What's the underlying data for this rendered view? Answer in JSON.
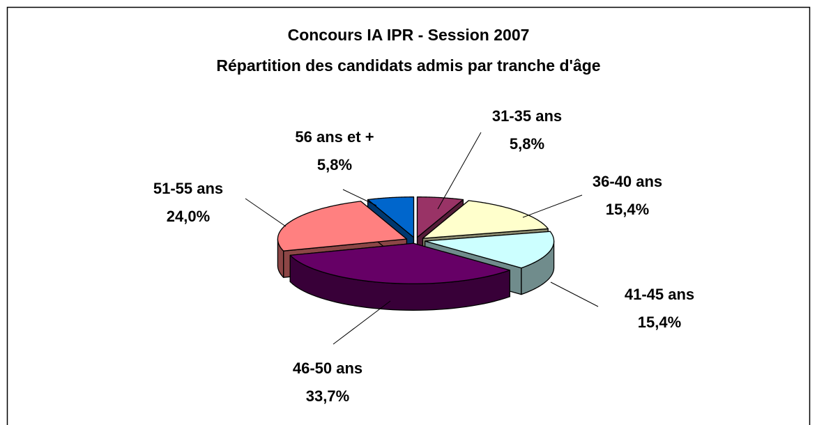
{
  "chart_data": {
    "type": "pie3d",
    "title": "Concours IA IPR - Session 2007",
    "subtitle": "Répartition des candidats admis par tranche d'âge",
    "categories": [
      "31-35 ans",
      "36-40 ans",
      "41-45 ans",
      "46-50 ans",
      "51-55 ans",
      "56 ans et +"
    ],
    "values": [
      5.8,
      15.4,
      15.4,
      33.7,
      24.0,
      5.8
    ],
    "value_labels": [
      "5,8%",
      "15,4%",
      "15,4%",
      "33,7%",
      "24,0%",
      "5,8%"
    ],
    "colors": [
      "#993366",
      "#ffffcc",
      "#ccffff",
      "#660066",
      "#ff8080",
      "#0066cc"
    ]
  }
}
